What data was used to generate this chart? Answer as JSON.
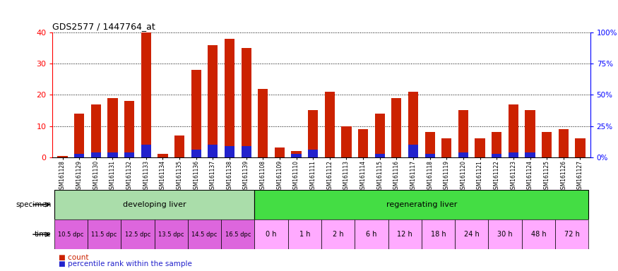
{
  "title": "GDS2577 / 1447764_at",
  "samples": [
    "GSM161128",
    "GSM161129",
    "GSM161130",
    "GSM161131",
    "GSM161132",
    "GSM161133",
    "GSM161134",
    "GSM161135",
    "GSM161136",
    "GSM161137",
    "GSM161138",
    "GSM161139",
    "GSM161108",
    "GSM161109",
    "GSM161110",
    "GSM161111",
    "GSM161112",
    "GSM161113",
    "GSM161114",
    "GSM161115",
    "GSM161116",
    "GSM161117",
    "GSM161118",
    "GSM161119",
    "GSM161120",
    "GSM161121",
    "GSM161122",
    "GSM161123",
    "GSM161124",
    "GSM161125",
    "GSM161126",
    "GSM161127"
  ],
  "count_values": [
    0.5,
    14,
    17,
    19,
    18,
    40,
    1,
    7,
    28,
    36,
    38,
    35,
    22,
    3,
    2,
    15,
    21,
    10,
    9,
    14,
    19,
    21,
    8,
    6,
    15,
    6,
    8,
    17,
    15,
    8,
    9,
    6
  ],
  "percentile_values": [
    0,
    1.0,
    1.5,
    1.5,
    1.5,
    4.0,
    0,
    0,
    2.5,
    4.0,
    3.5,
    3.5,
    0,
    0,
    1.0,
    2.5,
    0,
    0,
    0,
    1.0,
    0,
    4.0,
    1.0,
    0,
    1.5,
    0,
    1.0,
    1.5,
    1.5,
    0,
    0,
    0
  ],
  "developing_count": 12,
  "regenerating_count": 20,
  "time_labels_dev": [
    "10.5 dpc",
    "11.5 dpc",
    "12.5 dpc",
    "13.5 dpc",
    "14.5 dpc",
    "16.5 dpc"
  ],
  "time_labels_reg": [
    "0 h",
    "1 h",
    "2 h",
    "6 h",
    "12 h",
    "18 h",
    "24 h",
    "30 h",
    "48 h",
    "72 h"
  ],
  "time_spans_dev": [
    2,
    2,
    2,
    2,
    2,
    2
  ],
  "time_spans_reg": [
    2,
    2,
    2,
    2,
    2,
    2,
    2,
    2,
    2,
    2
  ],
  "bar_color_red": "#cc2200",
  "bar_color_blue": "#2222cc",
  "chart_bg": "#ffffff",
  "dev_specimen_color": "#aaddaa",
  "reg_specimen_color": "#44dd44",
  "dev_time_color": "#dd66dd",
  "reg_time_color": "#ffaaff",
  "ylim": [
    0,
    40
  ],
  "yticks": [
    0,
    10,
    20,
    30,
    40
  ],
  "right_yticks": [
    0,
    25,
    50,
    75,
    100
  ],
  "right_ylabels": [
    "0%",
    "25%",
    "50%",
    "75%",
    "100%"
  ]
}
